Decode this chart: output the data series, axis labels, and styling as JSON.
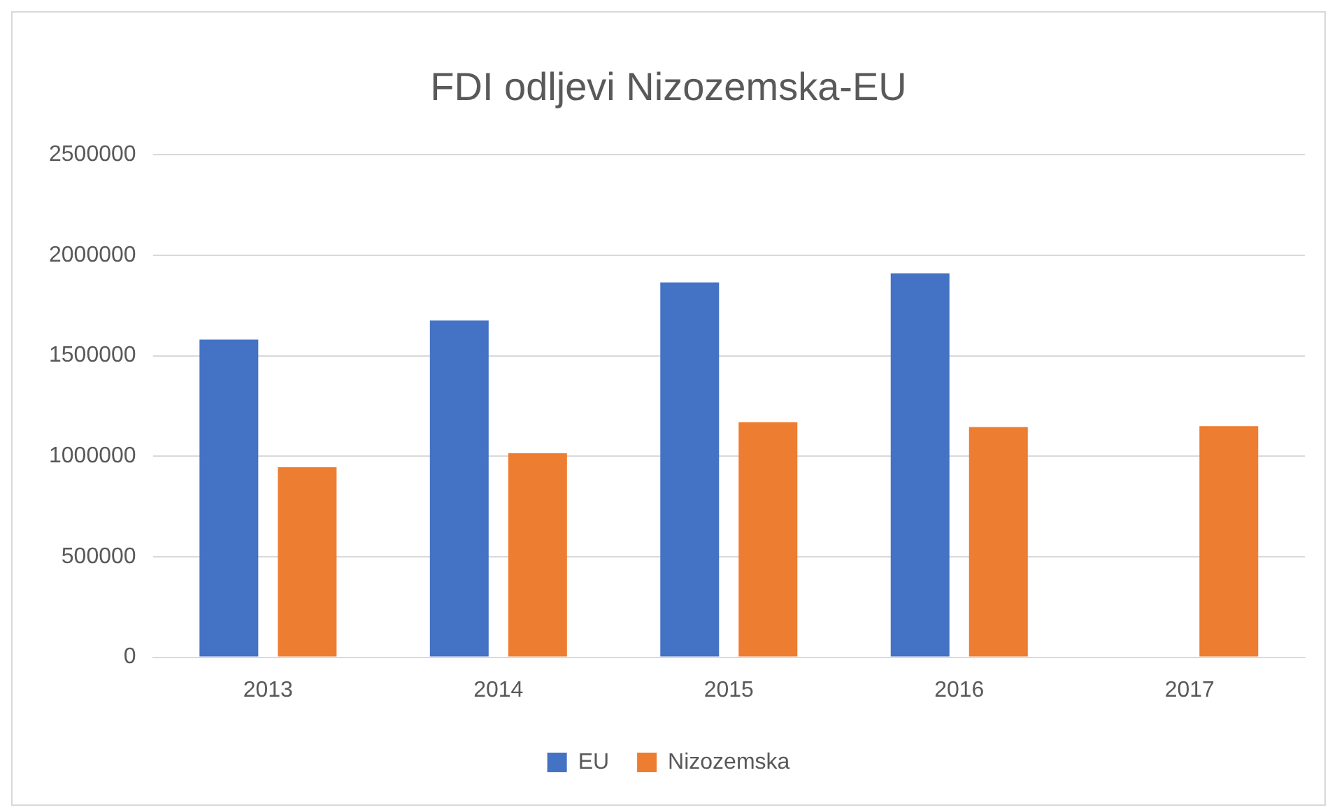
{
  "chart_data": {
    "type": "bar",
    "title": "FDI odljevi Nizozemska-EU",
    "categories": [
      "2013",
      "2014",
      "2015",
      "2016",
      "2017"
    ],
    "series": [
      {
        "name": "EU",
        "color": "#4472c4",
        "values": [
          1580000,
          1675000,
          1865000,
          1910000,
          null
        ]
      },
      {
        "name": "Nizozemska",
        "color": "#ed7d31",
        "values": [
          945000,
          1015000,
          1170000,
          1145000,
          1150000
        ]
      }
    ],
    "ylim": [
      0,
      2500000
    ],
    "yticks": [
      0,
      500000,
      1000000,
      1500000,
      2000000,
      2500000
    ],
    "grid": "y",
    "legend": "bottom"
  }
}
